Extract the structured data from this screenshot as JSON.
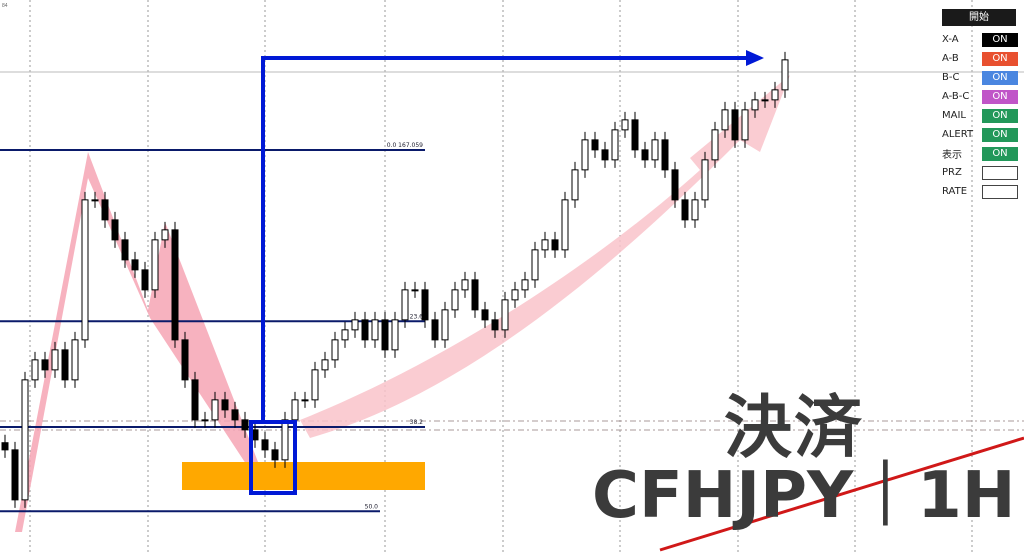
{
  "corner_label": "84",
  "chart_data": {
    "type": "candlestick",
    "ylim": [
      164.245,
      168.109
    ],
    "closes": [
      164.96,
      164.61,
      165.45,
      165.59,
      165.52,
      165.66,
      165.45,
      165.73,
      166.71,
      166.71,
      166.57,
      166.43,
      166.29,
      166.22,
      166.08,
      166.43,
      166.5,
      165.73,
      165.45,
      165.17,
      165.17,
      165.31,
      165.24,
      165.17,
      165.1,
      165.03,
      164.96,
      164.89,
      165.17,
      165.31,
      165.31,
      165.52,
      165.59,
      165.73,
      165.8,
      165.87,
      165.73,
      165.87,
      165.66,
      165.87,
      166.08,
      166.08,
      165.87,
      165.73,
      165.94,
      166.08,
      166.15,
      165.94,
      165.87,
      165.8,
      166.01,
      166.08,
      166.15,
      166.36,
      166.43,
      166.36,
      166.71,
      166.92,
      167.13,
      167.06,
      166.99,
      167.2,
      167.27,
      167.06,
      166.99,
      167.13,
      166.92,
      166.71,
      166.57,
      166.71,
      166.99,
      167.2,
      167.34,
      167.13,
      167.34,
      167.41,
      167.41,
      167.48,
      167.69
    ],
    "fib_levels": [
      {
        "label": "0.0",
        "price_label": "167.059",
        "price": 167.059
      },
      {
        "label": "23.6",
        "price": 165.86
      },
      {
        "label": "38.2",
        "price": 165.12
      },
      {
        "label": "50.0",
        "price": 164.53
      }
    ],
    "colors": {
      "pattern": "#f6a5b4",
      "zone": "#ffa800",
      "arrow": "#0019d6",
      "fib": "#0a1a6a",
      "trend": "#d01818"
    }
  },
  "panel": {
    "start_label": "開始",
    "rows": [
      {
        "label": "X-A",
        "value": "ON",
        "color": "#000000"
      },
      {
        "label": "A-B",
        "value": "ON",
        "color": "#e8502f"
      },
      {
        "label": "B-C",
        "value": "ON",
        "color": "#4a86e0"
      },
      {
        "label": "A-B-C",
        "value": "ON",
        "color": "#c055c8"
      },
      {
        "label": "MAIL",
        "value": "ON",
        "color": "#22985a"
      },
      {
        "label": "ALERT",
        "value": "ON",
        "color": "#22985a"
      },
      {
        "label": "表示",
        "value": "ON",
        "color": "#22985a"
      }
    ],
    "inputs": [
      {
        "label": "PRZ",
        "value": ""
      },
      {
        "label": "RATE",
        "value": ""
      }
    ]
  },
  "overlay": {
    "action": "決済",
    "symbol_tf": "CFHJPY｜1H"
  }
}
